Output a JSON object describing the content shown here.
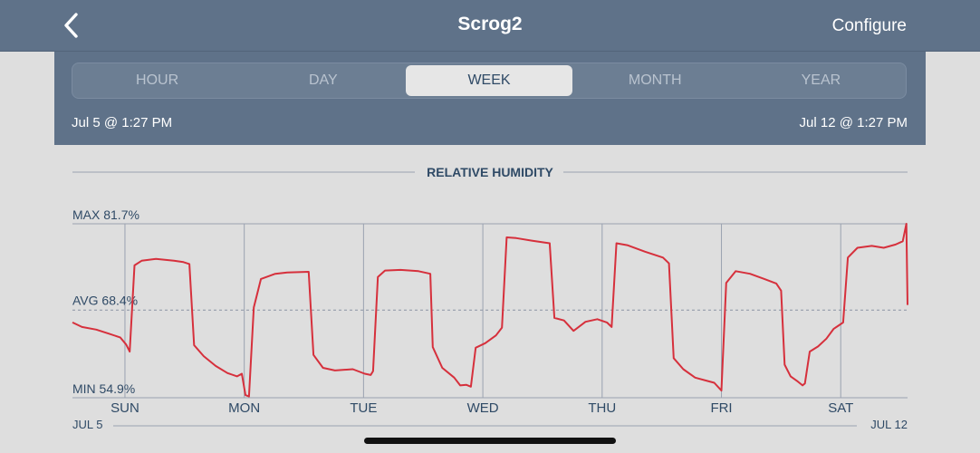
{
  "header": {
    "title": "Scrog2",
    "configure_label": "Configure",
    "back_icon": "chevron-left-icon"
  },
  "tabs": [
    {
      "label": "HOUR",
      "active": false
    },
    {
      "label": "DAY",
      "active": false
    },
    {
      "label": "WEEK",
      "active": true
    },
    {
      "label": "MONTH",
      "active": false
    },
    {
      "label": "YEAR",
      "active": false
    }
  ],
  "range": {
    "start": "Jul 5 @ 1:27 PM",
    "end": "Jul 12 @ 1:27 PM"
  },
  "colors": {
    "header_bg": "#5f7289",
    "line": "#d6303c",
    "grid": "#9aa2b0",
    "label": "#2f4a66"
  },
  "chart_data": {
    "type": "line",
    "title": "RELATIVE HUMIDITY",
    "max_label": "MAX 81.7%",
    "avg_label": "AVG 68.4%",
    "min_label": "MIN 54.9%",
    "ylim": [
      54.9,
      81.7
    ],
    "avg": 68.4,
    "xlim": [
      0,
      7
    ],
    "day_ticks": [
      {
        "label": "SUN",
        "x": 0.44
      },
      {
        "label": "MON",
        "x": 1.44
      },
      {
        "label": "TUE",
        "x": 2.44
      },
      {
        "label": "WED",
        "x": 3.44
      },
      {
        "label": "THU",
        "x": 4.44
      },
      {
        "label": "FRI",
        "x": 5.44
      },
      {
        "label": "SAT",
        "x": 6.44
      }
    ],
    "date_labels": {
      "start": "JUL 5",
      "end": "JUL 12"
    },
    "series": [
      {
        "values": [
          [
            0.0,
            66.5
          ],
          [
            0.08,
            65.8
          ],
          [
            0.2,
            65.4
          ],
          [
            0.3,
            64.8
          ],
          [
            0.4,
            64.2
          ],
          [
            0.45,
            63.1
          ],
          [
            0.48,
            62.0
          ],
          [
            0.52,
            75.3
          ],
          [
            0.58,
            76.0
          ],
          [
            0.7,
            76.3
          ],
          [
            0.85,
            76.0
          ],
          [
            0.93,
            75.8
          ],
          [
            0.98,
            75.5
          ],
          [
            1.02,
            63.0
          ],
          [
            1.1,
            61.3
          ],
          [
            1.2,
            59.8
          ],
          [
            1.3,
            58.7
          ],
          [
            1.38,
            58.2
          ],
          [
            1.42,
            58.6
          ],
          [
            1.45,
            55.3
          ],
          [
            1.48,
            55.1
          ],
          [
            1.52,
            68.8
          ],
          [
            1.58,
            73.2
          ],
          [
            1.7,
            74.0
          ],
          [
            1.8,
            74.2
          ],
          [
            1.98,
            74.3
          ],
          [
            2.02,
            61.5
          ],
          [
            2.1,
            59.5
          ],
          [
            2.2,
            59.1
          ],
          [
            2.35,
            59.3
          ],
          [
            2.45,
            58.6
          ],
          [
            2.5,
            58.4
          ],
          [
            2.52,
            59.0
          ],
          [
            2.56,
            73.5
          ],
          [
            2.62,
            74.5
          ],
          [
            2.75,
            74.6
          ],
          [
            2.9,
            74.4
          ],
          [
            3.0,
            74.0
          ],
          [
            3.02,
            62.7
          ],
          [
            3.1,
            59.5
          ],
          [
            3.2,
            58.0
          ],
          [
            3.25,
            56.8
          ],
          [
            3.3,
            56.9
          ],
          [
            3.34,
            56.6
          ],
          [
            3.38,
            62.6
          ],
          [
            3.46,
            63.3
          ],
          [
            3.55,
            64.5
          ],
          [
            3.6,
            65.7
          ],
          [
            3.64,
            79.6
          ],
          [
            3.72,
            79.5
          ],
          [
            3.85,
            79.1
          ],
          [
            3.96,
            78.8
          ],
          [
            4.0,
            78.7
          ],
          [
            4.04,
            67.2
          ],
          [
            4.12,
            66.8
          ],
          [
            4.2,
            65.2
          ],
          [
            4.3,
            66.6
          ],
          [
            4.4,
            67.0
          ],
          [
            4.48,
            66.5
          ],
          [
            4.52,
            65.8
          ],
          [
            4.56,
            78.7
          ],
          [
            4.65,
            78.4
          ],
          [
            4.8,
            77.4
          ],
          [
            4.95,
            76.5
          ],
          [
            5.0,
            75.6
          ],
          [
            5.04,
            61.0
          ],
          [
            5.12,
            59.3
          ],
          [
            5.22,
            58.0
          ],
          [
            5.32,
            57.5
          ],
          [
            5.38,
            57.2
          ],
          [
            5.44,
            56.0
          ],
          [
            5.48,
            72.6
          ],
          [
            5.56,
            74.4
          ],
          [
            5.68,
            74.0
          ],
          [
            5.8,
            73.2
          ],
          [
            5.9,
            72.5
          ],
          [
            5.94,
            71.4
          ],
          [
            5.97,
            60.0
          ],
          [
            6.02,
            58.2
          ],
          [
            6.08,
            57.4
          ],
          [
            6.12,
            56.8
          ],
          [
            6.14,
            57.1
          ],
          [
            6.18,
            62.0
          ],
          [
            6.25,
            62.8
          ],
          [
            6.32,
            64.0
          ],
          [
            6.38,
            65.5
          ],
          [
            6.42,
            66.0
          ],
          [
            6.46,
            66.5
          ],
          [
            6.5,
            76.5
          ],
          [
            6.58,
            78.0
          ],
          [
            6.7,
            78.3
          ],
          [
            6.8,
            78.0
          ],
          [
            6.9,
            78.5
          ],
          [
            6.96,
            79.0
          ],
          [
            6.99,
            81.7
          ],
          [
            7.0,
            69.2
          ]
        ]
      }
    ]
  }
}
